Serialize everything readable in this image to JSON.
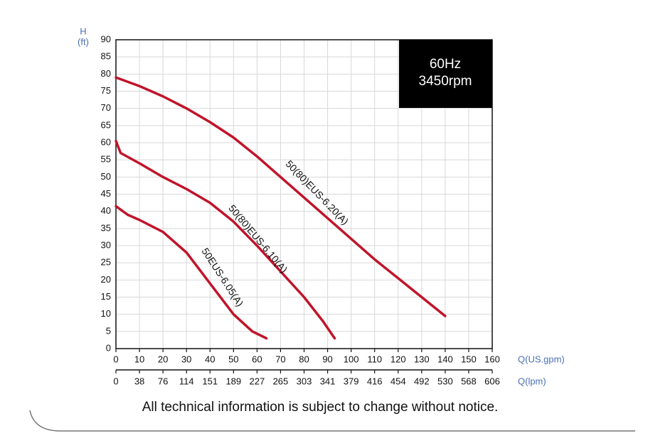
{
  "chart_data": {
    "type": "line",
    "y_label": "H",
    "y_unit": "(ft)",
    "x_label": "Q(US.gpm)",
    "x2_label": "Q(lpm)",
    "box_lines": [
      "60Hz",
      "3450rpm"
    ],
    "note": "All technical information is subject to change without notice.",
    "xlim": [
      0,
      160
    ],
    "ylim": [
      0,
      90
    ],
    "x2lim": [
      0,
      605.66
    ],
    "xticks": [
      0,
      10,
      20,
      30,
      40,
      50,
      60,
      70,
      80,
      90,
      100,
      110,
      120,
      130,
      140,
      150,
      160
    ],
    "yticks": [
      0,
      5,
      10,
      15,
      20,
      25,
      30,
      35,
      40,
      45,
      50,
      55,
      60,
      65,
      70,
      75,
      80,
      85,
      90
    ],
    "x2ticks": [
      0,
      {
        "value": 37.85,
        "label": "38"
      },
      {
        "value": 75.71,
        "label": "76"
      },
      {
        "value": 113.56,
        "label": "114"
      },
      {
        "value": 151.42,
        "label": "151"
      },
      {
        "value": 189.27,
        "label": "189"
      },
      {
        "value": 227.12,
        "label": "227"
      },
      {
        "value": 264.98,
        "label": "265"
      },
      {
        "value": 302.83,
        "label": "303"
      },
      {
        "value": 340.69,
        "label": "341"
      },
      {
        "value": 378.54,
        "label": "379"
      },
      {
        "value": 416.39,
        "label": "416"
      },
      {
        "value": 454.25,
        "label": "454"
      },
      {
        "value": 492.1,
        "label": "492"
      },
      {
        "value": 529.96,
        "label": "530"
      },
      {
        "value": 567.81,
        "label": "568"
      },
      {
        "value": 605.66,
        "label": "606"
      }
    ],
    "grid": true,
    "series": [
      {
        "name": "50(80)EUS-6.20(A)",
        "color": "#c0142a",
        "x": [
          0,
          10,
          20,
          30,
          40,
          50,
          60,
          70,
          80,
          90,
          100,
          110,
          120,
          130,
          140
        ],
        "values": [
          79,
          76.5,
          73.5,
          70,
          66,
          61.5,
          56,
          50,
          44,
          38,
          32,
          26,
          20.5,
          15,
          9.5
        ]
      },
      {
        "name": "50(80)EUS-6.10(A)",
        "color": "#c0142a",
        "x": [
          0,
          2,
          10,
          20,
          30,
          40,
          50,
          60,
          70,
          80,
          88,
          93
        ],
        "values": [
          60.5,
          57,
          54,
          50,
          46.5,
          42.5,
          37,
          30,
          22.5,
          15,
          8,
          3
        ]
      },
      {
        "name": "50EUS-6.05(A)",
        "color": "#c0142a",
        "x": [
          0,
          5,
          10,
          20,
          30,
          40,
          50,
          58,
          64
        ],
        "values": [
          41.5,
          39,
          37.5,
          34,
          28,
          19,
          10,
          5,
          3
        ]
      }
    ]
  }
}
